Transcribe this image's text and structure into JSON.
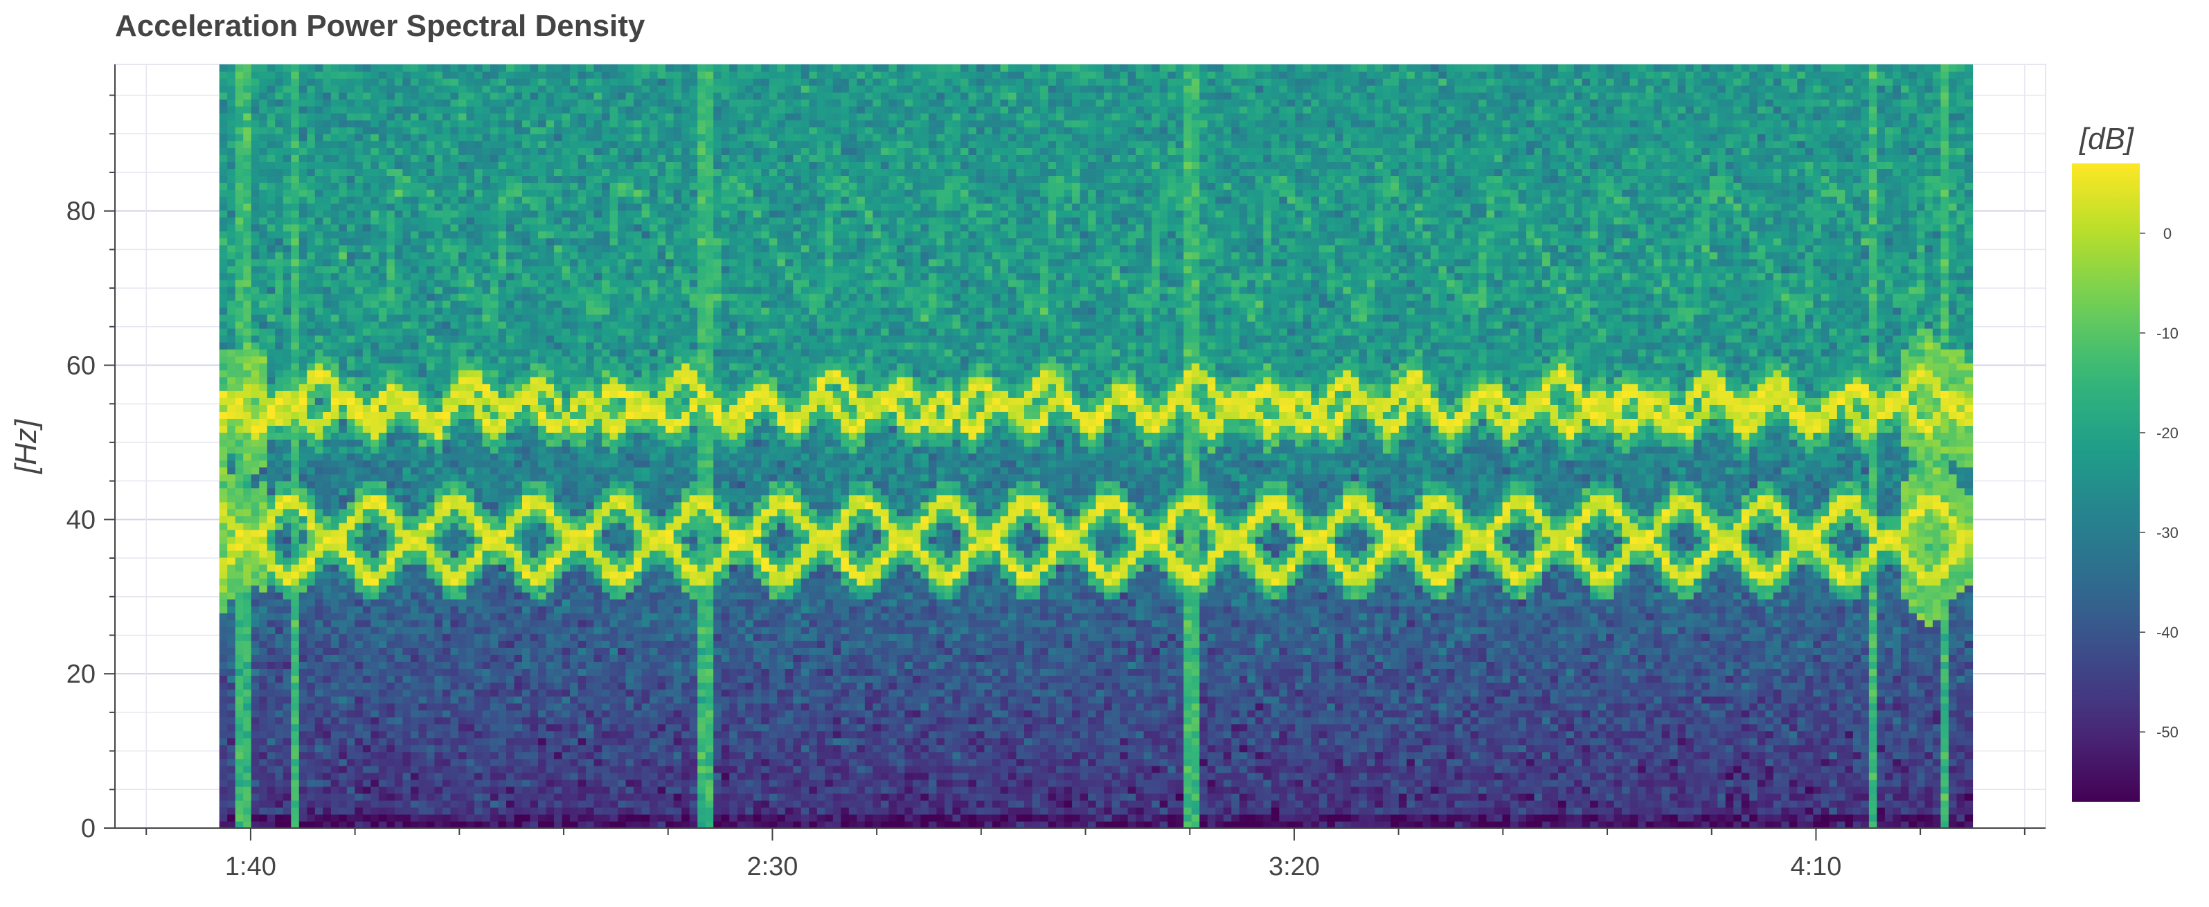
{
  "chart_data": {
    "type": "heatmap",
    "title": "Acceleration Power Spectral Density",
    "ylabel": "[Hz]",
    "colorbar_label": "[dB]",
    "colormap": "viridis",
    "x_domain_seconds": [
      87,
      272
    ],
    "data_x_range_seconds": [
      97,
      265
    ],
    "ylim": [
      0,
      99
    ],
    "y_ticks": [
      {
        "value": 0,
        "label": "0"
      },
      {
        "value": 20,
        "label": "20"
      },
      {
        "value": 40,
        "label": "40"
      },
      {
        "value": 60,
        "label": "60"
      },
      {
        "value": 80,
        "label": "80"
      }
    ],
    "x_ticks": [
      {
        "value": 100,
        "label": "1:40"
      },
      {
        "value": 150,
        "label": "2:30"
      },
      {
        "value": 200,
        "label": "3:20"
      },
      {
        "value": 250,
        "label": "4:10"
      }
    ],
    "x_minor_tick_step_seconds": 10,
    "y_minor_tick_step": 5,
    "colorbar_range_db": [
      -57,
      7
    ],
    "colorbar_ticks": [
      {
        "value": 0,
        "label": "0"
      },
      {
        "value": -10,
        "label": "-10"
      },
      {
        "value": -20,
        "label": "-20"
      },
      {
        "value": -30,
        "label": "-30"
      },
      {
        "value": -40,
        "label": "-40"
      },
      {
        "value": -50,
        "label": "-50"
      }
    ],
    "grid": true,
    "bands": [
      {
        "name": "upper band",
        "center_hz": 55,
        "level_db": 5
      },
      {
        "name": "lower band",
        "center_hz": 37,
        "level_db": 5
      }
    ],
    "background_db": {
      "high_freq": -23,
      "low_freq": -48
    }
  },
  "colors": {
    "grid": "#e6e6f0",
    "grid_major": "#d3d3e6",
    "axis": "#444444",
    "viridis": [
      "#440154",
      "#482878",
      "#3e4989",
      "#31688e",
      "#26828e",
      "#1f9e89",
      "#35b779",
      "#6ece58",
      "#b5de2b",
      "#fde725"
    ]
  }
}
